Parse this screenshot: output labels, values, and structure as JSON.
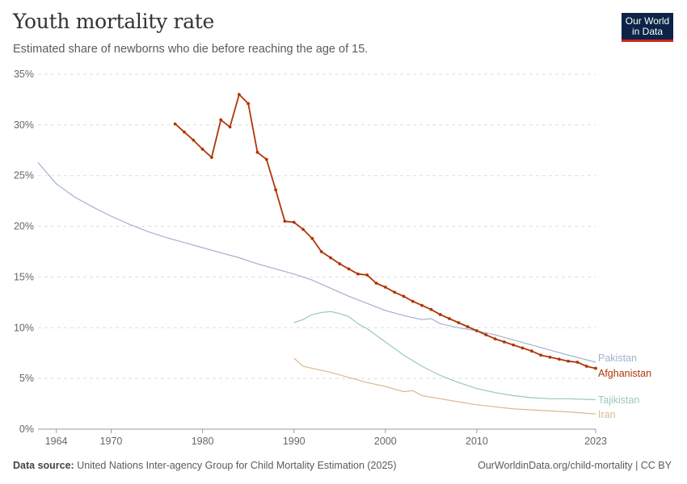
{
  "header": {
    "title": "Youth mortality rate",
    "subtitle": "Estimated share of newborns who die before reaching the age of 15.",
    "logo_line1": "Our World",
    "logo_line2": "in Data"
  },
  "footer": {
    "source_label": "Data source:",
    "source_text": "United Nations Inter-agency Group for Child Mortality Estimation (2025)",
    "credit": "OurWorldinData.org/child-mortality | CC BY"
  },
  "chart_data": {
    "type": "line",
    "title": "Youth mortality rate",
    "subtitle": "Estimated share of newborns who die before reaching the age of 15.",
    "xlabel": "",
    "ylabel": "",
    "xlim": [
      1962,
      2023
    ],
    "ylim": [
      0,
      35
    ],
    "x_ticks": [
      1964,
      1970,
      1980,
      1990,
      2000,
      2010,
      2023
    ],
    "y_ticks": [
      "0%",
      "5%",
      "10%",
      "15%",
      "20%",
      "25%",
      "30%",
      "35%"
    ],
    "y_tick_values": [
      0,
      5,
      10,
      15,
      20,
      25,
      30,
      35
    ],
    "grid": true,
    "series": [
      {
        "name": "Pakistan",
        "color": "#a2b1cf",
        "markers": false,
        "x": [
          1962,
          1964,
          1966,
          1968,
          1970,
          1972,
          1974,
          1976,
          1978,
          1980,
          1982,
          1984,
          1986,
          1988,
          1990,
          1992,
          1994,
          1996,
          1998,
          2000,
          2002,
          2004,
          2005,
          2006,
          2008,
          2010,
          2012,
          2014,
          2016,
          2018,
          2020,
          2023
        ],
        "values": [
          26.3,
          24.2,
          22.9,
          21.9,
          21.0,
          20.2,
          19.5,
          18.9,
          18.4,
          17.9,
          17.4,
          16.9,
          16.3,
          15.8,
          15.3,
          14.7,
          13.9,
          13.1,
          12.4,
          11.7,
          11.2,
          10.8,
          10.9,
          10.4,
          10.0,
          9.7,
          9.3,
          8.8,
          8.3,
          7.8,
          7.3,
          6.6
        ]
      },
      {
        "name": "Afghanistan",
        "color": "#b13507",
        "markers": true,
        "x": [
          1977,
          1978,
          1979,
          1980,
          1981,
          1982,
          1983,
          1984,
          1985,
          1986,
          1987,
          1988,
          1989,
          1990,
          1991,
          1992,
          1993,
          1994,
          1995,
          1996,
          1997,
          1998,
          1999,
          2000,
          2001,
          2002,
          2003,
          2004,
          2005,
          2006,
          2007,
          2008,
          2009,
          2010,
          2011,
          2012,
          2013,
          2014,
          2015,
          2016,
          2017,
          2018,
          2019,
          2020,
          2021,
          2022,
          2023
        ],
        "values": [
          30.1,
          29.3,
          28.5,
          27.6,
          26.8,
          30.5,
          29.8,
          33.0,
          32.1,
          27.3,
          26.6,
          23.6,
          20.5,
          20.4,
          19.7,
          18.8,
          17.5,
          16.9,
          16.3,
          15.8,
          15.3,
          15.2,
          14.4,
          14.0,
          13.5,
          13.1,
          12.6,
          12.2,
          11.8,
          11.3,
          10.9,
          10.5,
          10.1,
          9.7,
          9.3,
          8.9,
          8.6,
          8.3,
          8.0,
          7.7,
          7.3,
          7.1,
          6.9,
          6.7,
          6.6,
          6.2,
          6.0
        ]
      },
      {
        "name": "Tajikistan",
        "color": "#9bc7ba",
        "markers": false,
        "x": [
          1990,
          1991,
          1992,
          1993,
          1994,
          1995,
          1996,
          1997,
          1998,
          2000,
          2002,
          2004,
          2006,
          2008,
          2010,
          2012,
          2014,
          2016,
          2018,
          2020,
          2023
        ],
        "values": [
          10.5,
          10.8,
          11.3,
          11.5,
          11.6,
          11.4,
          11.1,
          10.4,
          9.9,
          8.6,
          7.3,
          6.2,
          5.3,
          4.6,
          4.0,
          3.6,
          3.3,
          3.1,
          3.0,
          3.0,
          2.9
        ]
      },
      {
        "name": "Iran",
        "color": "#ddb68e",
        "markers": false,
        "x": [
          1990,
          1991,
          1992,
          1994,
          1996,
          1998,
          2000,
          2002,
          2003,
          2004,
          2006,
          2008,
          2010,
          2012,
          2014,
          2016,
          2018,
          2020,
          2023
        ],
        "values": [
          7.0,
          6.2,
          6.0,
          5.6,
          5.1,
          4.6,
          4.2,
          3.7,
          3.8,
          3.3,
          3.0,
          2.7,
          2.4,
          2.2,
          2.0,
          1.9,
          1.8,
          1.7,
          1.5
        ]
      }
    ],
    "legend": "end-of-line labels"
  }
}
